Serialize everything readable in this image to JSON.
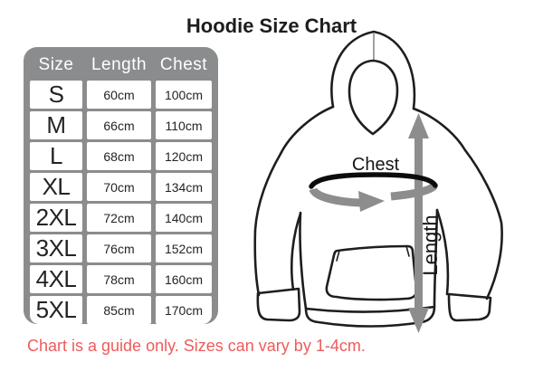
{
  "title": "Hoodie Size Chart",
  "table": {
    "columns": [
      "Size",
      "Length",
      "Chest"
    ],
    "rows": [
      {
        "size": "S",
        "length": "60cm",
        "chest": "100cm"
      },
      {
        "size": "M",
        "length": "66cm",
        "chest": "110cm"
      },
      {
        "size": "L",
        "length": "68cm",
        "chest": "120cm"
      },
      {
        "size": "XL",
        "length": "70cm",
        "chest": "134cm"
      },
      {
        "size": "2XL",
        "length": "72cm",
        "chest": "140cm"
      },
      {
        "size": "3XL",
        "length": "76cm",
        "chest": "152cm"
      },
      {
        "size": "4XL",
        "length": "78cm",
        "chest": "160cm"
      },
      {
        "size": "5XL",
        "length": "85cm",
        "chest": "170cm"
      }
    ]
  },
  "diagram": {
    "chest_label": "Chest",
    "length_label": "Length"
  },
  "note": "Chart is a guide only. Sizes can vary by 1-4cm.",
  "colors": {
    "table_frame_gray": "#8a8c8e",
    "arrow_gray": "#8d8d8d",
    "note_red": "#ee5b5b",
    "outline_black": "#1e1e1e"
  }
}
